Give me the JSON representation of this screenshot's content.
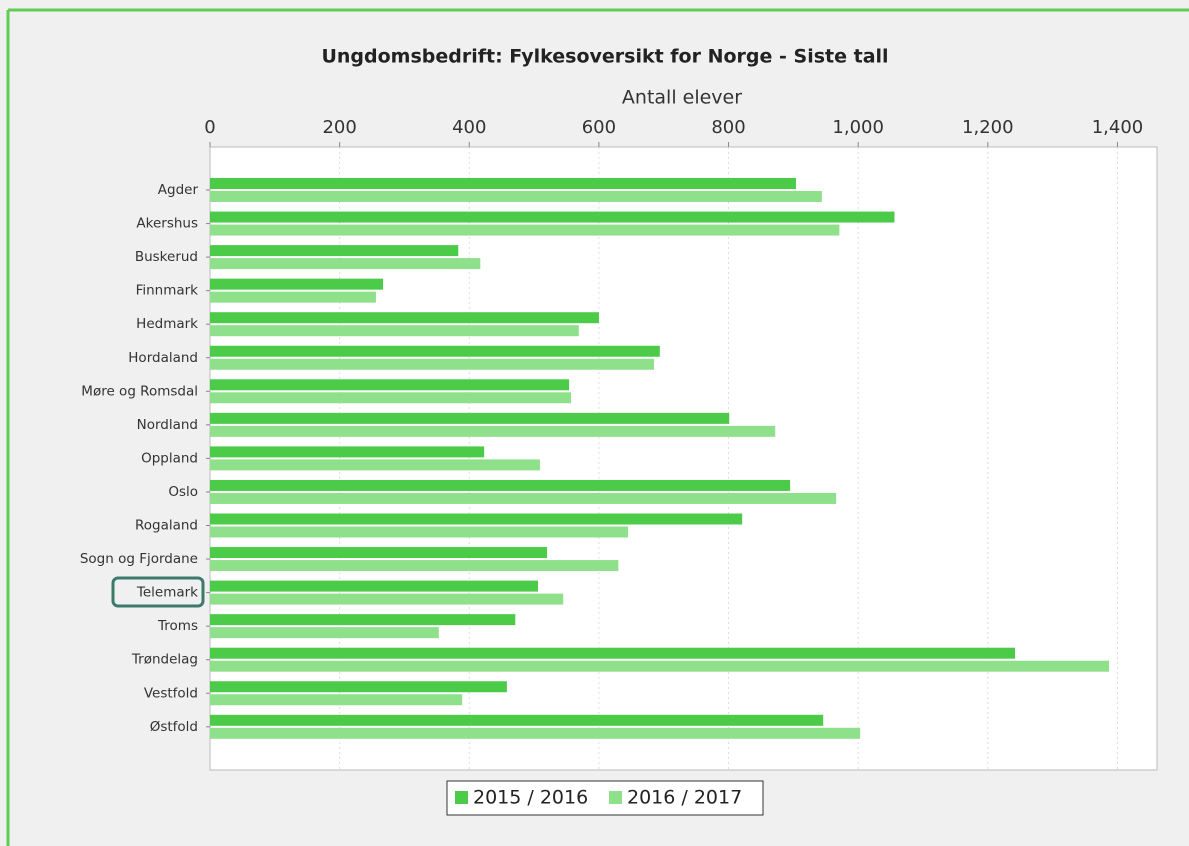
{
  "chart_data": {
    "type": "bar",
    "orientation": "horizontal",
    "title": "Ungdomsbedrift: Fylkesoversikt for Norge - Siste tall",
    "x_label": "Antall elever",
    "categories": [
      "Agder",
      "Akershus",
      "Buskerud",
      "Finnmark",
      "Hedmark",
      "Hordaland",
      "Møre og Romsdal",
      "Nordland",
      "Oppland",
      "Oslo",
      "Rogaland",
      "Sogn og Fjordane",
      "Telemark",
      "Troms",
      "Trøndelag",
      "Vestfold",
      "Østfold"
    ],
    "series": [
      {
        "name": "2015 / 2016",
        "color": "#4ccb49",
        "values": [
          904,
          1056,
          383,
          267,
          600,
          694,
          554,
          801,
          423,
          895,
          821,
          520,
          506,
          471,
          1242,
          458,
          946
        ]
      },
      {
        "name": "2016 / 2017",
        "color": "#8fe08a",
        "values": [
          944,
          971,
          417,
          256,
          569,
          685,
          557,
          872,
          509,
          966,
          645,
          630,
          545,
          353,
          1387,
          389,
          1003
        ]
      }
    ],
    "xlim": [
      0,
      1461
    ],
    "xticks": [
      0,
      200,
      400,
      600,
      800,
      {
        "value": 1000,
        "label": "1,000"
      },
      {
        "value": 1200,
        "label": "1,200"
      },
      {
        "value": 1400,
        "label": "1,400"
      }
    ],
    "grid": true
  }
}
